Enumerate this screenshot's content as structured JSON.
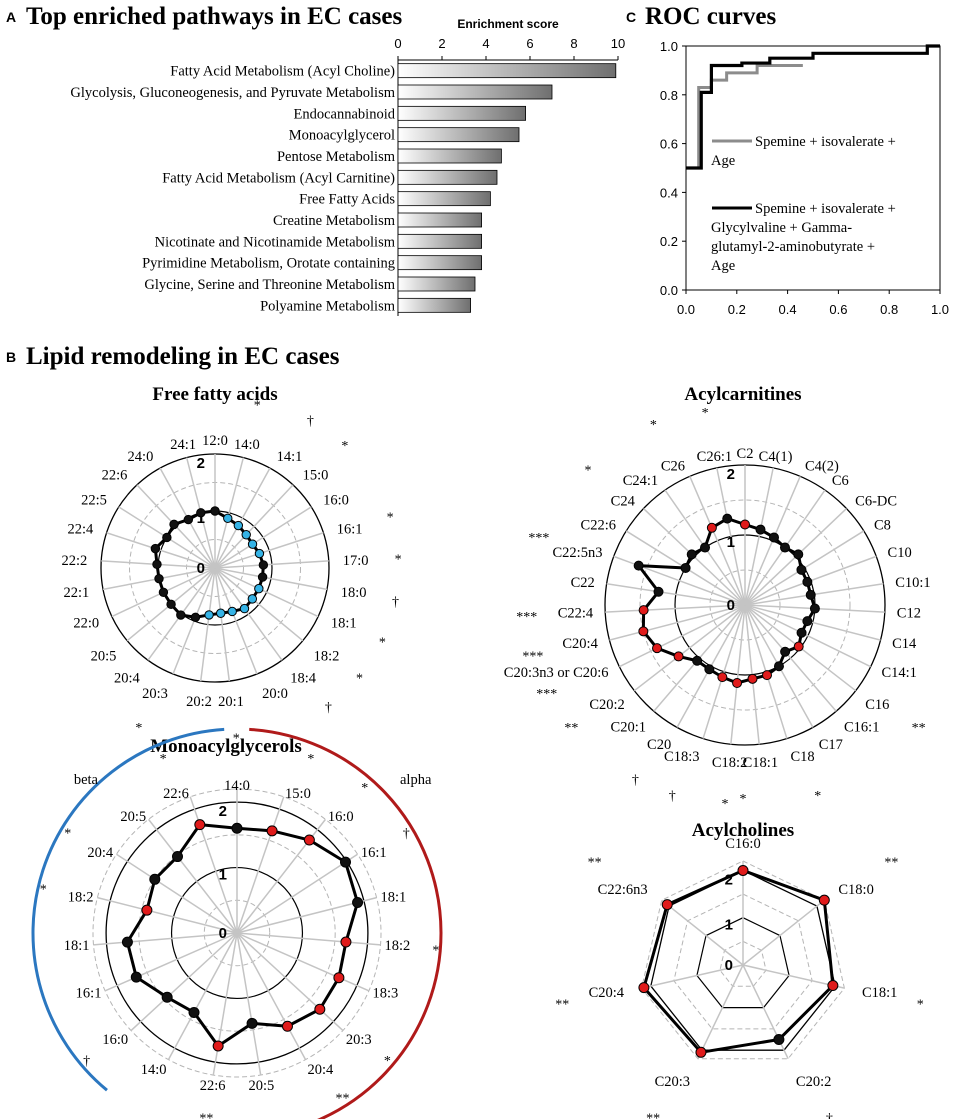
{
  "panel_a": {
    "letter": "A",
    "title": "Top enriched pathways in EC cases",
    "chart_data": {
      "type": "bar",
      "orientation": "horizontal",
      "xlabel": "Enrichment score",
      "xlim": [
        0,
        10
      ],
      "xticks": [
        "0",
        "2",
        "4",
        "6",
        "8",
        "10"
      ],
      "categories": [
        "Fatty Acid Metabolism (Acyl Choline)",
        "Glycolysis, Gluconeogenesis, and Pyruvate Metabolism",
        "Endocannabinoid",
        "Monoacylglycerol",
        "Pentose Metabolism",
        "Fatty Acid Metabolism (Acyl Carnitine)",
        "Free Fatty Acids",
        "Creatine Metabolism",
        "Nicotinate and Nicotinamide Metabolism",
        "Pyrimidine Metabolism, Orotate containing",
        "Glycine, Serine and Threonine Metabolism",
        "Polyamine Metabolism"
      ],
      "values": [
        9.9,
        7.0,
        5.8,
        5.5,
        4.7,
        4.5,
        4.2,
        3.8,
        3.8,
        3.8,
        3.5,
        3.3
      ]
    }
  },
  "panel_c": {
    "letter": "C",
    "title": "ROC curves",
    "chart_data": {
      "type": "line",
      "xlim": [
        0,
        1
      ],
      "ylim": [
        0,
        1
      ],
      "xticks": [
        "0.0",
        "0.2",
        "0.4",
        "0.6",
        "0.8",
        "1.0"
      ],
      "yticks": [
        "0.0",
        "0.2",
        "0.4",
        "0.6",
        "0.8",
        "1.0"
      ],
      "series": [
        {
          "name": "Spemine + isovalerate + Age",
          "legend_lines": [
            "Spemine + isovalerate +",
            "Age"
          ],
          "color": "#8c8c8c",
          "points": [
            [
              0,
              0.5
            ],
            [
              0.05,
              0.5
            ],
            [
              0.05,
              0.83
            ],
            [
              0.1,
              0.83
            ],
            [
              0.1,
              0.86
            ],
            [
              0.16,
              0.86
            ],
            [
              0.16,
              0.89
            ],
            [
              0.28,
              0.89
            ],
            [
              0.28,
              0.92
            ],
            [
              0.46,
              0.92
            ]
          ]
        },
        {
          "name": "Spemine + isovalerate + Glycylvaline + Gamma-glutamyl-2-aminobutyrate + Age",
          "legend_lines": [
            "Spemine + isovalerate +",
            "Glycylvaline + Gamma-",
            "glutamyl-2-aminobutyrate +",
            "Age"
          ],
          "color": "#000000",
          "points": [
            [
              0,
              0.5
            ],
            [
              0.06,
              0.5
            ],
            [
              0.06,
              0.81
            ],
            [
              0.1,
              0.81
            ],
            [
              0.1,
              0.92
            ],
            [
              0.22,
              0.92
            ],
            [
              0.22,
              0.93
            ],
            [
              0.33,
              0.93
            ],
            [
              0.33,
              0.95
            ],
            [
              0.5,
              0.95
            ],
            [
              0.5,
              0.97
            ],
            [
              0.95,
              0.97
            ],
            [
              0.95,
              1.0
            ],
            [
              1.0,
              1.0
            ]
          ]
        }
      ]
    }
  },
  "panel_b": {
    "letter": "B",
    "title": "Lipid remodeling in EC cases",
    "radars": [
      {
        "id": "ffa",
        "title": "Free fatty acids",
        "ring_labels": [
          "0",
          "1",
          "2"
        ],
        "chart_data": {
          "type": "radar",
          "rmax": 2,
          "categories": [
            "12:0",
            "14:0",
            "14:1",
            "15:0",
            "16:0",
            "16:1",
            "17:0",
            "18:0",
            "18:1",
            "18:2",
            "18:4",
            "20:0",
            "20:1",
            "20:2",
            "20:3",
            "20:4",
            "20:5",
            "22:0",
            "22:1",
            "22:2",
            "22:4",
            "22:5",
            "22:6",
            "24:0",
            "24:1"
          ],
          "significance": [
            "",
            "*",
            "†",
            "*",
            "",
            "*",
            "*",
            "†",
            "*",
            "*",
            "†",
            "",
            "*",
            "",
            "*",
            "",
            "",
            "",
            "",
            "",
            "",
            "",
            "",
            "",
            ""
          ],
          "values": [
            1.0,
            0.9,
            0.85,
            0.8,
            0.78,
            0.82,
            0.85,
            0.85,
            0.85,
            0.85,
            0.88,
            0.82,
            0.8,
            0.83,
            0.93,
            1.02,
            1.0,
            1.0,
            1.0,
            1.02,
            1.1,
            1.0,
            1.05,
            0.97,
            1.0
          ],
          "point_colors": [
            "black",
            "blue",
            "blue",
            "blue",
            "blue",
            "blue",
            "black",
            "black",
            "blue",
            "blue",
            "blue",
            "blue",
            "blue",
            "blue",
            "black",
            "black",
            "black",
            "black",
            "black",
            "black",
            "black",
            "black",
            "black",
            "black",
            "black"
          ]
        }
      },
      {
        "id": "acylcarnitines",
        "title": "Acylcarnitines",
        "ring_labels": [
          "0",
          "1",
          "2"
        ],
        "chart_data": {
          "type": "radar",
          "rmax": 2,
          "categories": [
            "C2",
            "C4(1)",
            "C4(2)",
            "C6",
            "C6-DC",
            "C8",
            "C10",
            "C10:1",
            "C12",
            "C14",
            "C14:1",
            "C16",
            "C16:1",
            "C17",
            "C18",
            "C18:1",
            "C18:2",
            "C18:3",
            "C20",
            "C20:1",
            "C20:2",
            "C20:3n3 or C20:6",
            "C20:4",
            "C22:4",
            "C22",
            "C22:5n3",
            "C22:6",
            "C24",
            "C24:1",
            "C26",
            "C26:1"
          ],
          "significance": [
            "",
            "",
            "",
            "",
            "",
            "",
            "",
            "",
            "",
            "",
            "",
            "**",
            "",
            "",
            "*",
            "",
            "*",
            "†",
            "†",
            "",
            "**",
            "***",
            "***",
            "***",
            "",
            "***",
            "",
            "*",
            "",
            "*",
            "*"
          ],
          "values": [
            1.15,
            1.1,
            1.05,
            1.0,
            1.05,
            0.95,
            0.95,
            0.95,
            1.0,
            0.92,
            0.9,
            0.97,
            0.88,
            1.0,
            1.05,
            1.06,
            1.12,
            1.08,
            1.05,
            1.05,
            1.2,
            1.4,
            1.5,
            1.45,
            1.25,
            1.62,
            1.0,
            1.05,
            1.0,
            1.2,
            1.26
          ],
          "point_colors": [
            "red",
            "black",
            "black",
            "black",
            "black",
            "black",
            "black",
            "black",
            "black",
            "black",
            "black",
            "red",
            "black",
            "black",
            "red",
            "red",
            "red",
            "red",
            "black",
            "black",
            "red",
            "red",
            "red",
            "red",
            "black",
            "black",
            "black",
            "black",
            "black",
            "red",
            "black"
          ]
        }
      },
      {
        "id": "mag",
        "title": "Monoacylglycerols",
        "ring_labels": [
          "0",
          "1",
          "2"
        ],
        "arc_labels": {
          "beta": "beta",
          "alpha": "alpha"
        },
        "arc_colors": {
          "beta": "#2b77c0",
          "alpha": "#b01a1a"
        },
        "chart_data": {
          "type": "radar",
          "rmax": 2.2,
          "categories": [
            "14:0",
            "15:0",
            "16:0",
            "16:1",
            "18:1",
            "18:2",
            "18:3",
            "20:3",
            "20:4",
            "20:5",
            "22:6",
            "14:0",
            "16:0",
            "16:1",
            "18:1",
            "18:2",
            "20:4",
            "20:5",
            "22:6"
          ],
          "significance": [
            "",
            "*",
            "*",
            "†",
            "",
            "*",
            "",
            "*",
            "**",
            "",
            "**",
            "",
            "†",
            "",
            "",
            "*",
            "*",
            "",
            "*"
          ],
          "values": [
            1.6,
            1.65,
            1.8,
            1.98,
            1.9,
            1.67,
            1.7,
            1.72,
            1.62,
            1.4,
            1.75,
            1.38,
            1.45,
            1.68,
            1.68,
            1.42,
            1.5,
            1.48,
            1.75
          ],
          "point_colors": [
            "black",
            "red",
            "red",
            "black",
            "black",
            "red",
            "red",
            "red",
            "red",
            "black",
            "red",
            "black",
            "black",
            "black",
            "black",
            "red",
            "black",
            "black",
            "red"
          ]
        }
      },
      {
        "id": "acylcholines",
        "title": "Acylcholines",
        "ring_labels": [
          "0",
          "1",
          "2"
        ],
        "chart_data": {
          "type": "radar",
          "rmax": 2.2,
          "categories": [
            "C16:0",
            "C18:0",
            "C18:1",
            "C20:2",
            "C20:3",
            "C20:4",
            "C22:6n3"
          ],
          "significance": [
            "*",
            "**",
            "*",
            "†",
            "**",
            "**",
            "**"
          ],
          "values": [
            2.0,
            2.2,
            1.95,
            1.75,
            2.05,
            2.15,
            2.05
          ],
          "point_colors": [
            "red",
            "red",
            "red",
            "black",
            "red",
            "red",
            "red"
          ]
        }
      }
    ]
  }
}
